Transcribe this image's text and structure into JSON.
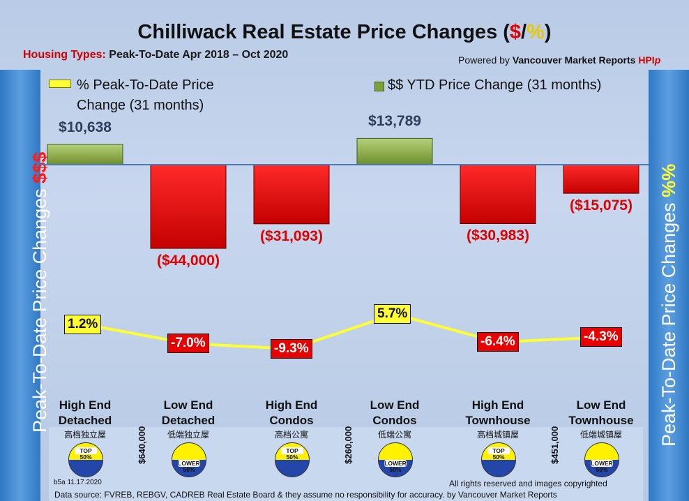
{
  "header": {
    "title_prefix": "Chilliwack Real Estate Price Changes (",
    "title_dollar": "$",
    "title_slash": "/",
    "title_percent": "%",
    "title_suffix": ")",
    "subtitle_label": "Housing Types:",
    "subtitle_value": "Peak-To-Date Apr 2018 – Oct 2020",
    "powered_prefix": "Powered by",
    "powered_brand": "Vancouver Market Reports",
    "powered_hpi": "HPI",
    "powered_p": "p"
  },
  "side": {
    "left_text": "Peak-To-Date Price Changes",
    "left_symbol": "$$$",
    "right_text": "Peak-To-Date  Price  Changes",
    "right_symbol": "%%"
  },
  "legend": {
    "pct_line1": "% Peak-To-Date Price",
    "pct_line2": "Change (31 months)",
    "dollar": "$$ YTD Price Change (31 months)"
  },
  "chart_data": {
    "type": "bar",
    "title": "Chilliwack Real Estate Price Changes ($/%)",
    "categories": [
      "High End Detached",
      "Low End Detached",
      "High End Condos",
      "Low End Condos",
      "High End Townhouse",
      "Low End Townhouse"
    ],
    "category_lines": [
      [
        "High End",
        "Detached"
      ],
      [
        "Low End",
        "Detached"
      ],
      [
        "High End",
        "Condos"
      ],
      [
        "Low End",
        "Condos"
      ],
      [
        "High End",
        "Townhouse"
      ],
      [
        "Low End",
        "Townhouse"
      ]
    ],
    "chinese_labels": [
      "高档独立屋",
      "低端独立屋",
      "高档公寓",
      "低端公寓",
      "高档城镇屋",
      "低端城镇屋"
    ],
    "series": [
      {
        "name": "$$ YTD Price Change (31 months)",
        "type": "bar",
        "values": [
          10638,
          -44000,
          -31093,
          13789,
          -30983,
          -15075
        ],
        "labels": [
          "$10,638",
          "($44,000)",
          "($31,093)",
          "$13,789",
          "($30,983)",
          "($15,075)"
        ]
      },
      {
        "name": "% Peak-To-Date Price Change (31 months)",
        "type": "line",
        "values": [
          1.2,
          -7.0,
          -9.3,
          5.7,
          -6.4,
          -4.3
        ],
        "labels": [
          "1.2%",
          "-7.0%",
          "-9.3%",
          "5.7%",
          "-6.4%",
          "-4.3%"
        ]
      }
    ],
    "medians": [
      "$640,000",
      "$260,000",
      "$451,000"
    ],
    "badges": [
      "top",
      "lower",
      "top",
      "lower",
      "top",
      "lower"
    ],
    "badge_text": {
      "top": [
        "TOP",
        "50%"
      ],
      "lower": [
        "LOWER",
        "50%"
      ]
    },
    "colors": {
      "positive": "#8aae4a",
      "negative": "#e00000",
      "line": "#ffff33",
      "pct_pos_bg": "#ffff33",
      "pct_neg_bg": "#e80000",
      "axis": "#4a7ab8"
    }
  },
  "footer": {
    "version": "b5a 11.17.2020",
    "rights": "All rights reserved and  images copyrighted",
    "source": "Data source: FVREB, REBGV, CADREB Real Estate Board & they assume no responsibility for accuracy. by Vancouver Market Reports"
  }
}
